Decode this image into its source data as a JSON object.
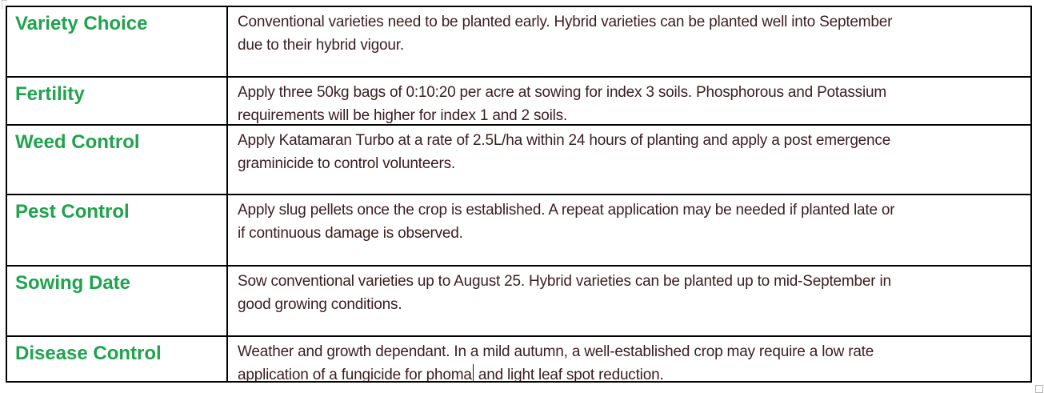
{
  "table": {
    "rows": [
      {
        "heading": "Variety Choice",
        "lines": [
          "Conventional varieties need to be planted early. Hybrid varieties can be planted well into September",
          "due to their hybrid vigour."
        ]
      },
      {
        "heading": "Fertility",
        "lines": [
          "Apply three 50kg bags of 0:10:20 per acre at sowing for index 3 soils. Phosphorous and Potassium",
          "requirements will be higher for index 1 and 2 soils."
        ]
      },
      {
        "heading": "Weed Control",
        "lines": [
          "Apply Katamaran Turbo at a rate of 2.5L/ha within 24 hours of planting and apply a post emergence",
          "graminicide to control volunteers."
        ]
      },
      {
        "heading": "Pest Control",
        "lines": [
          "Apply slug pellets once the crop is established. A repeat application may be needed if planted late or",
          "if continuous damage is observed."
        ]
      },
      {
        "heading": "Sowing Date",
        "lines": [
          "Sow conventional varieties up to August 25. Hybrid varieties can be planted up to mid-September in",
          "good growing conditions."
        ]
      },
      {
        "heading": "Disease Control",
        "lines": [
          "Weather and growth dependant. In a mild autumn, a well-established crop may require a low rate"
        ],
        "line2_before_caret": "application of a fungicide for phoma",
        "line2_after_caret": " and light leaf spot reduction."
      }
    ],
    "colors": {
      "heading_green": "#1FA34C",
      "body_text": "#3B1E1E",
      "border": "#000000"
    }
  }
}
